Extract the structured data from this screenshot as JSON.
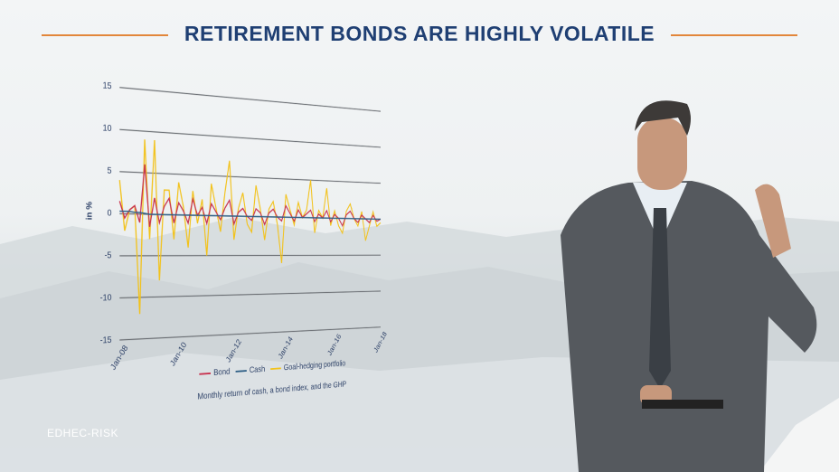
{
  "logo": "EDHEC-RISK",
  "chart_data": {
    "type": "line",
    "title": "RETIREMENT BONDS ARE HIGHLY VOLATILE",
    "caption": "Monthly return of cash, a bond index, and the GHP",
    "y_label": "in %",
    "categories": [
      "Jan-08",
      null,
      null,
      null,
      null,
      null,
      null,
      null,
      null,
      null,
      null,
      null,
      "Jan-10",
      null,
      null,
      null,
      null,
      null,
      null,
      null,
      null,
      null,
      null,
      null,
      "Jan-12",
      null,
      null,
      null,
      null,
      null,
      null,
      null,
      null,
      null,
      null,
      null,
      "Jan-14",
      null,
      null,
      null,
      null,
      null,
      null,
      null,
      null,
      null,
      null,
      null,
      "Jan-16",
      null,
      null,
      null,
      null,
      null,
      null,
      null,
      null,
      null,
      null,
      null,
      "Jan-18"
    ],
    "series": [
      {
        "name": "Bond",
        "color": "#c8334f",
        "values": [
          1.5,
          -0.5,
          0.5,
          1,
          -1,
          6,
          -1.5,
          2,
          -1,
          1,
          2,
          -1,
          1.5,
          0.5,
          -1,
          2,
          0,
          1,
          -1,
          1.5,
          0.5,
          -0.5,
          1,
          2,
          -1,
          0.5,
          1,
          0,
          -0.5,
          1,
          0.5,
          -1,
          0.5,
          1,
          0,
          -0.5,
          1.5,
          0.5,
          -0.5,
          1,
          0,
          0.5,
          1,
          -0.5,
          0.5,
          0,
          1,
          -0.5,
          0.5,
          0,
          -1,
          0.5,
          1,
          0,
          -0.5,
          0.5,
          0,
          -0.5,
          0.5,
          -0.3,
          0
        ]
      },
      {
        "name": "Cash",
        "color": "#2e5f86",
        "values": [
          0.3,
          0.3,
          0.3,
          0.2,
          0.2,
          0.1,
          0,
          0,
          0,
          0,
          0,
          0,
          0,
          0,
          0,
          0,
          0,
          0,
          0,
          0,
          0,
          0,
          0,
          0,
          0,
          0,
          0,
          0,
          0,
          0,
          0,
          0,
          0,
          0,
          0,
          0,
          0,
          0,
          0,
          0,
          0,
          0,
          0,
          0,
          0,
          0,
          0,
          0,
          0,
          0,
          0,
          0,
          0,
          0,
          0,
          0,
          0,
          0,
          0,
          0,
          0
        ]
      },
      {
        "name": "Goal-hedging portfolio",
        "color": "#f2c21b",
        "values": [
          4,
          -2,
          0.5,
          1,
          -12,
          9,
          -3,
          9,
          -8,
          3,
          3,
          -3,
          4,
          1,
          -4,
          3,
          -1,
          2,
          -5,
          4,
          1,
          -2,
          3,
          7,
          -3,
          1,
          3,
          -1,
          -2,
          4,
          1,
          -3,
          1,
          2,
          -1,
          -6,
          3,
          1,
          -1,
          2,
          0,
          1,
          5,
          -2,
          1,
          0,
          4,
          -1,
          1,
          -1,
          -2,
          1,
          2,
          0,
          -1,
          1,
          -3,
          -1,
          1,
          -1,
          -0.5
        ]
      }
    ],
    "ylim": [
      -15,
      15
    ],
    "yticks": [
      -15,
      -10,
      -5,
      0,
      5,
      10,
      15
    ],
    "grid": true
  }
}
